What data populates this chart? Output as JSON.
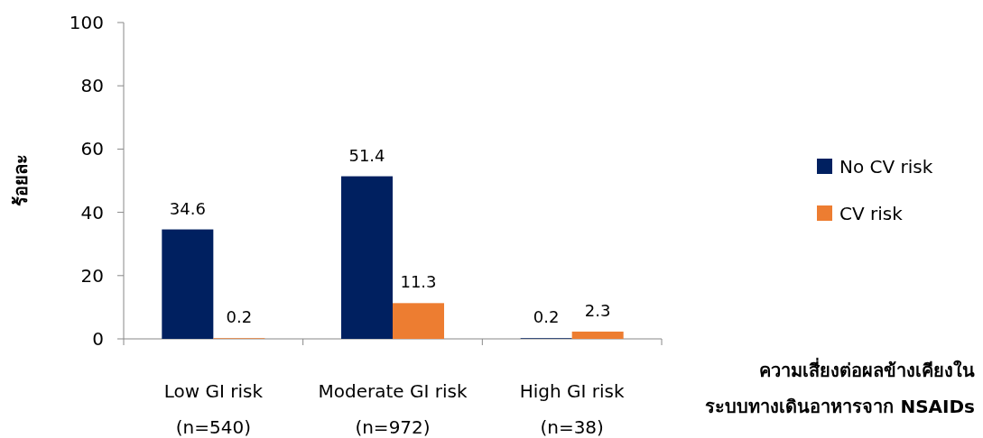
{
  "chart_data": {
    "type": "bar",
    "ylabel": "ร้อยละ",
    "xlabel": "ความเสี่ยงต่อผลข้างเคียงใน\nระบบทางเดินอาหารจาก NSAIDs",
    "categories": [
      "Low GI risk\n(n=540)",
      "Moderate GI risk\n(n=972)",
      "High GI risk\n(n=38)"
    ],
    "series": [
      {
        "name": "No CV risk",
        "color": "#002060",
        "values": [
          34.6,
          51.4,
          0.2
        ]
      },
      {
        "name": "CV risk",
        "color": "#ed7d31",
        "values": [
          0.2,
          11.3,
          2.3
        ]
      }
    ],
    "ylim": [
      0,
      100
    ],
    "yticks": [
      0,
      20,
      40,
      60,
      80,
      100
    ],
    "data_labels": true,
    "legend": "right",
    "grid": false
  }
}
